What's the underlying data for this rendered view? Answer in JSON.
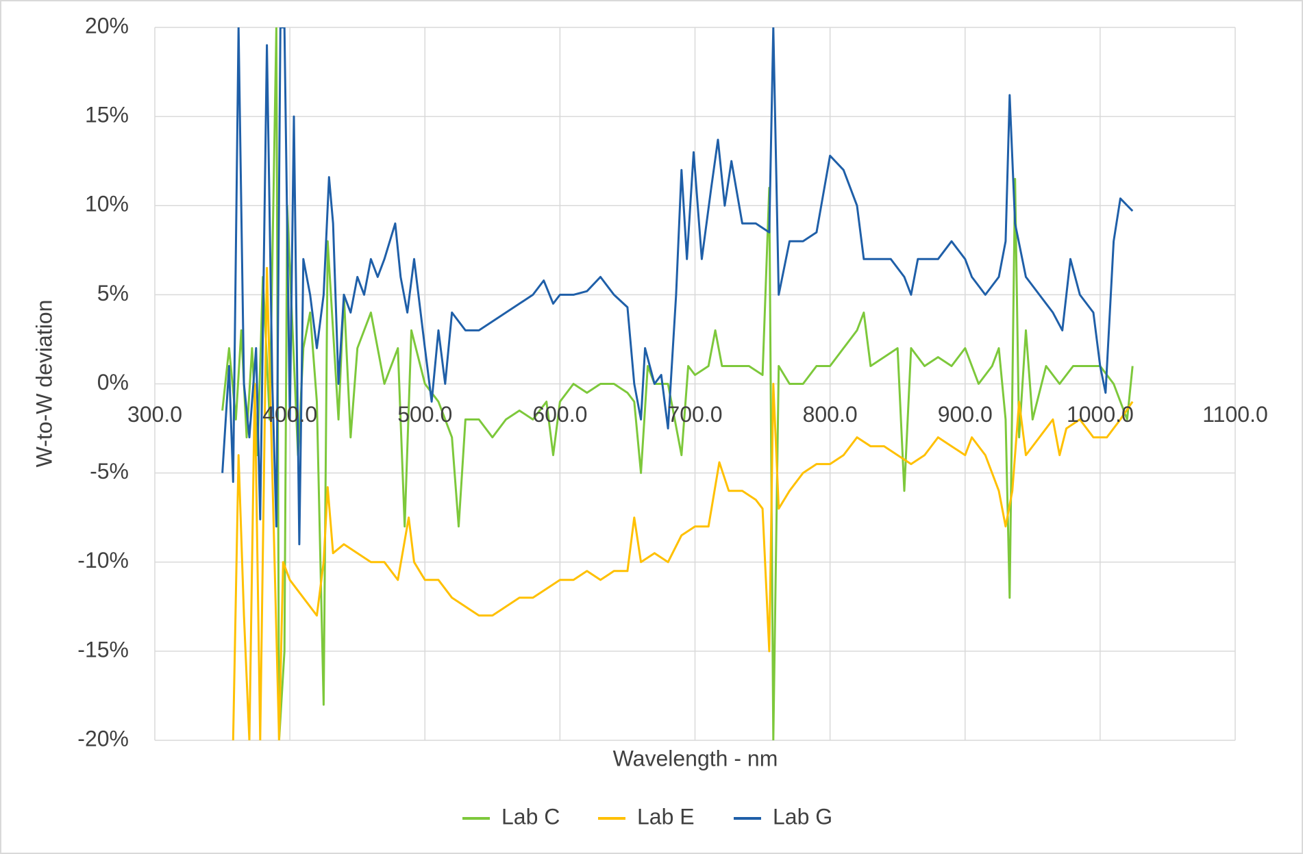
{
  "chart_data": {
    "type": "line",
    "xlabel": "Wavelength - nm",
    "ylabel": "W-to-W deviation",
    "xlim": [
      300,
      1100
    ],
    "ylim": [
      -20,
      20
    ],
    "xticks": [
      {
        "value": 300,
        "label": "300.0"
      },
      {
        "value": 400,
        "label": "400.0"
      },
      {
        "value": 500,
        "label": "500.0"
      },
      {
        "value": 600,
        "label": "600.0"
      },
      {
        "value": 700,
        "label": "700.0"
      },
      {
        "value": 800,
        "label": "800.0"
      },
      {
        "value": 900,
        "label": "900.0"
      },
      {
        "value": 1000,
        "label": "1000.0"
      },
      {
        "value": 1100,
        "label": "1100.0"
      }
    ],
    "yticks": [
      {
        "value": -20,
        "label": "-20%"
      },
      {
        "value": -15,
        "label": "-15%"
      },
      {
        "value": -10,
        "label": "-10%"
      },
      {
        "value": -5,
        "label": "-5%"
      },
      {
        "value": 0,
        "label": "0%"
      },
      {
        "value": 5,
        "label": "5%"
      },
      {
        "value": 10,
        "label": "10%"
      },
      {
        "value": 15,
        "label": "15%"
      },
      {
        "value": 20,
        "label": "20%"
      }
    ],
    "grid": true,
    "legend": "bottom",
    "series": [
      {
        "name": "Lab C",
        "color": "#7dc83b",
        "x": [
          350,
          355,
          360,
          364,
          368,
          372,
          376,
          380,
          385,
          390,
          392,
          396,
          398,
          402,
          406,
          410,
          415,
          420,
          425,
          428,
          432,
          436,
          440,
          445,
          450,
          460,
          470,
          480,
          485,
          490,
          500,
          510,
          520,
          525,
          530,
          540,
          550,
          560,
          570,
          580,
          590,
          595,
          600,
          610,
          620,
          630,
          640,
          650,
          655,
          660,
          665,
          670,
          680,
          690,
          695,
          700,
          710,
          715,
          720,
          730,
          740,
          750,
          755,
          758,
          762,
          770,
          780,
          790,
          800,
          810,
          820,
          825,
          830,
          840,
          850,
          855,
          860,
          870,
          880,
          890,
          900,
          910,
          920,
          925,
          930,
          933,
          937,
          940,
          945,
          950,
          960,
          970,
          980,
          990,
          1000,
          1010,
          1020,
          1024
        ],
        "values": [
          -1.5,
          2,
          -2,
          3,
          -3,
          2,
          -4,
          6,
          -2,
          20,
          -20,
          -15,
          10,
          3,
          -4,
          2,
          4,
          -1,
          -18,
          8,
          3,
          -2,
          5,
          -3,
          2,
          4,
          0,
          2,
          -8,
          3,
          0,
          -1,
          -3,
          -8,
          -2,
          -2,
          -3,
          -2,
          -1.5,
          -2,
          -1,
          -4,
          -1,
          0,
          -0.5,
          0,
          0,
          -0.5,
          -1,
          -5,
          1,
          0,
          0,
          -4,
          1,
          0.5,
          1,
          3,
          1,
          1,
          1,
          0.5,
          11,
          -20,
          1,
          0,
          0,
          1,
          1,
          2,
          3,
          4,
          1,
          1.5,
          2,
          -6,
          2,
          1,
          1.5,
          1,
          2,
          0,
          1,
          2,
          -2,
          -12,
          11.5,
          -3,
          3,
          -2,
          1,
          0,
          1,
          1,
          1,
          0,
          -2,
          1
        ]
      },
      {
        "name": "Lab E",
        "color": "#ffc000",
        "x": [
          358,
          362,
          366,
          370,
          374,
          378,
          383,
          387,
          392,
          395,
          400,
          410,
          420,
          425,
          428,
          432,
          440,
          450,
          460,
          470,
          480,
          488,
          492,
          500,
          510,
          520,
          530,
          540,
          550,
          560,
          570,
          580,
          590,
          600,
          610,
          620,
          630,
          640,
          650,
          655,
          660,
          670,
          680,
          690,
          700,
          710,
          718,
          725,
          735,
          745,
          750,
          755,
          758,
          762,
          770,
          780,
          790,
          800,
          810,
          820,
          830,
          840,
          850,
          860,
          870,
          880,
          890,
          900,
          905,
          915,
          925,
          930,
          935,
          940,
          945,
          955,
          965,
          970,
          975,
          985,
          995,
          1005,
          1015,
          1024
        ],
        "values": [
          -20,
          -4,
          -13,
          -20,
          0,
          -20,
          6.5,
          -5,
          -20,
          -10,
          -11,
          -12,
          -13,
          -10,
          -5.8,
          -9.5,
          -9,
          -9.5,
          -10,
          -10,
          -11,
          -7.5,
          -10,
          -11,
          -11,
          -12,
          -12.5,
          -13,
          -13,
          -12.5,
          -12,
          -12,
          -11.5,
          -11,
          -11,
          -10.5,
          -11,
          -10.5,
          -10.5,
          -7.5,
          -10,
          -9.5,
          -10,
          -8.5,
          -8,
          -8,
          -4.4,
          -6,
          -6,
          -6.5,
          -7,
          -15,
          0,
          -7,
          -6,
          -5,
          -4.5,
          -4.5,
          -4,
          -3,
          -3.5,
          -3.5,
          -4,
          -4.5,
          -4,
          -3,
          -3.5,
          -4,
          -3,
          -4,
          -6,
          -8,
          -6,
          -1,
          -4,
          -3,
          -2,
          -4,
          -2.5,
          -2,
          -3,
          -3,
          -2,
          -1
        ]
      },
      {
        "name": "Lab G",
        "color": "#1f5fa8",
        "x": [
          350,
          355,
          358,
          362,
          366,
          370,
          375,
          378,
          383,
          387,
          390,
          393,
          396,
          400,
          403,
          407,
          410,
          415,
          420,
          425,
          429,
          432,
          436,
          440,
          445,
          450,
          455,
          460,
          465,
          470,
          478,
          482,
          487,
          492,
          500,
          505,
          510,
          515,
          520,
          530,
          540,
          550,
          560,
          570,
          580,
          588,
          595,
          600,
          610,
          620,
          630,
          640,
          650,
          655,
          660,
          663,
          670,
          675,
          680,
          686,
          690,
          694,
          699,
          705,
          712,
          717,
          722,
          727,
          735,
          745,
          755,
          758,
          762,
          770,
          780,
          790,
          800,
          810,
          820,
          825,
          835,
          845,
          855,
          860,
          865,
          880,
          890,
          900,
          905,
          915,
          925,
          930,
          933,
          937,
          945,
          955,
          965,
          972,
          978,
          985,
          995,
          1000,
          1004,
          1010,
          1015,
          1024
        ],
        "values": [
          -5,
          1,
          -5.5,
          20,
          0,
          -3,
          2,
          -7.6,
          19,
          0,
          -8,
          20,
          20,
          -2,
          15,
          -9,
          7,
          5,
          2,
          5,
          11.6,
          9,
          0,
          5,
          4,
          6,
          5,
          7,
          6,
          7,
          9,
          6,
          4,
          7,
          2,
          -1,
          3,
          0,
          4,
          3,
          3,
          3.5,
          4,
          4.5,
          5,
          5.8,
          4.5,
          5,
          5,
          5.2,
          6,
          5,
          4.3,
          0,
          -2,
          2,
          0,
          0.5,
          -2.5,
          5,
          12,
          7,
          13,
          7,
          11,
          13.7,
          10,
          12.5,
          9,
          9,
          8.5,
          20,
          5,
          8,
          8,
          8.5,
          12.8,
          12,
          10,
          7,
          7,
          7,
          6,
          5,
          7,
          7,
          8,
          7,
          6,
          5,
          6,
          8,
          16.2,
          9,
          6,
          5,
          4,
          3,
          7,
          5,
          4,
          1,
          -0.5,
          8,
          10.4,
          9.7
        ]
      }
    ]
  }
}
